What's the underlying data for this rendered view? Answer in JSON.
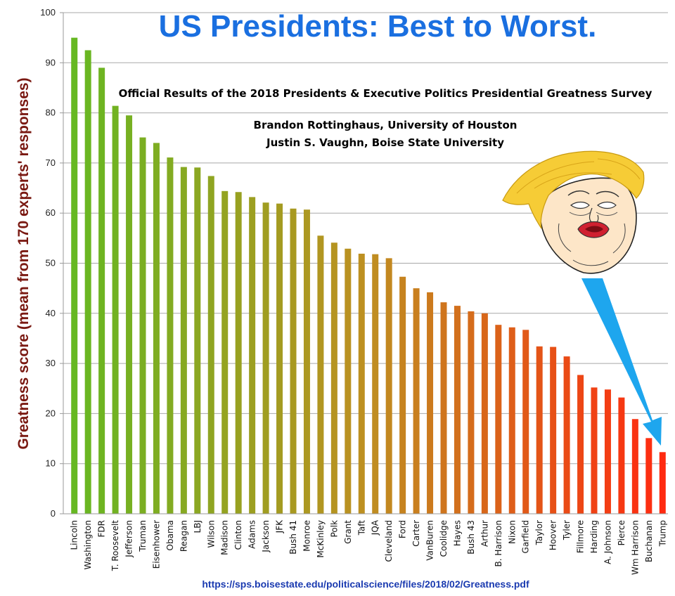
{
  "chart_data": {
    "type": "bar",
    "title": "US Presidents: Best to Worst.",
    "subtitle": "Official Results of the 2018 Presidents & Executive Politics Presidential Greatness Survey",
    "authors": [
      "Brandon Rottinghaus, University of Houston",
      "Justin S. Vaughn, Boise State University"
    ],
    "ylabel": "Greatness score (mean from 170 experts' responses)",
    "xlabel": "",
    "ylim": [
      0,
      100
    ],
    "yticks": [
      0,
      10,
      20,
      30,
      40,
      50,
      60,
      70,
      80,
      90,
      100
    ],
    "grid": true,
    "source_url": "https://sps.boisestate.edu/politicalscience/files/2018/02/Greatness.pdf",
    "categories": [
      "Lincoln",
      "Washington",
      "FDR",
      "T. Roosevelt",
      "Jefferson",
      "Truman",
      "Eisenhower",
      "Obama",
      "Reagan",
      "LBJ",
      "Wilson",
      "Madison",
      "Clinton",
      "Adams",
      "Jackson",
      "JFK",
      "Bush 41",
      "Monroe",
      "McKinley",
      "Polk",
      "Grant",
      "Taft",
      "JQA",
      "Cleveland",
      "Ford",
      "Carter",
      "VanBuren",
      "Coolidge",
      "Hayes",
      "Bush 43",
      "Arthur",
      "B. Harrison",
      "Nixon",
      "Garfield",
      "Taylor",
      "Hoover",
      "Tyler",
      "Fillmore",
      "Harding",
      "A. Johnson",
      "Pierce",
      "Wm Harrison",
      "Buchanan",
      "Trump"
    ],
    "values": [
      95.0,
      92.5,
      89.0,
      81.4,
      79.5,
      75.1,
      74.0,
      71.1,
      69.2,
      69.1,
      67.4,
      64.4,
      64.2,
      63.2,
      62.1,
      61.9,
      60.9,
      60.7,
      55.5,
      54.1,
      52.9,
      51.9,
      51.8,
      51.0,
      47.3,
      45.0,
      44.2,
      42.2,
      41.5,
      40.4,
      40.0,
      37.7,
      37.2,
      36.7,
      33.4,
      33.3,
      31.4,
      27.7,
      25.2,
      24.8,
      23.2,
      18.9,
      15.1,
      12.3
    ],
    "color_start": "#66b822",
    "color_mid": "#bf8f21",
    "color_end": "#ff2a10",
    "annotation": "cartoon caricature with blue arrow pointing to Trump bar",
    "arrow_color": "#1ea6ee"
  }
}
